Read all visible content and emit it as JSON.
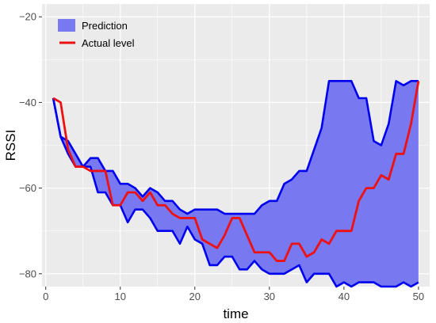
{
  "chart_data": {
    "type": "area",
    "xlabel": "time",
    "ylabel": "RSSI",
    "xlim": [
      -0.5,
      51.5
    ],
    "ylim": [
      -83,
      -17
    ],
    "x_ticks": [
      0,
      10,
      20,
      30,
      40,
      50
    ],
    "x_tick_labels": [
      "0",
      "10",
      "20",
      "30",
      "40",
      "50"
    ],
    "y_ticks": [
      -20,
      -40,
      -60,
      -80
    ],
    "y_tick_labels": [
      "−20",
      "−40",
      "−60",
      "−80"
    ],
    "grid": true,
    "legend_position": "top-left",
    "x": [
      1,
      2,
      3,
      4,
      5,
      6,
      7,
      8,
      9,
      10,
      11,
      12,
      13,
      14,
      15,
      16,
      17,
      18,
      19,
      20,
      21,
      22,
      23,
      24,
      25,
      26,
      27,
      28,
      29,
      30,
      31,
      32,
      33,
      34,
      35,
      36,
      37,
      38,
      39,
      40,
      41,
      42,
      43,
      44,
      45,
      46,
      47,
      48,
      49,
      50
    ],
    "series": [
      {
        "name": "Prediction",
        "kind": "ribbon",
        "color": "#7878f0",
        "border_color": "#0000ee",
        "upper": [
          -39,
          -48,
          -49,
          -52,
          -55,
          -53,
          -53,
          -56,
          -56,
          -59,
          -59,
          -60,
          -62,
          -60,
          -61,
          -63,
          -63,
          -65,
          -66,
          -65,
          -65,
          -65,
          -65,
          -66,
          -66,
          -66,
          -66,
          -66,
          -64,
          -63,
          -63,
          -59,
          -58,
          -56,
          -56,
          -51,
          -46,
          -35,
          -35,
          -35,
          -35,
          -39,
          -39,
          -49,
          -50,
          -45,
          -35,
          -36,
          -35,
          -35
        ],
        "lower": [
          -39,
          -48,
          -52,
          -55,
          -55,
          -55,
          -61,
          -61,
          -64,
          -64,
          -68,
          -65,
          -65,
          -67,
          -70,
          -70,
          -70,
          -73,
          -69,
          -72,
          -73,
          -78,
          -78,
          -76,
          -76,
          -79,
          -79,
          -77,
          -79,
          -80,
          -80,
          -80,
          -79,
          -78,
          -82,
          -80,
          -80,
          -80,
          -83,
          -82,
          -83,
          -82,
          -82,
          -82,
          -83,
          -83,
          -83,
          -82,
          -83,
          -82
        ]
      },
      {
        "name": "Actual level",
        "kind": "line",
        "color": "#ee1111",
        "values": [
          -39,
          -40,
          -51,
          -55,
          -55,
          -56,
          -56,
          -56,
          -64,
          -64,
          -61,
          -61,
          -63,
          -61,
          -64,
          -64,
          -66,
          -67,
          -67,
          -67,
          -72,
          -73,
          -74,
          -71,
          -67,
          -67,
          -71,
          -75,
          -75,
          -75,
          -77,
          -77,
          -73,
          -73,
          -76,
          -75,
          -72,
          -73,
          -70,
          -70,
          -70,
          -63,
          -60,
          -60,
          -57,
          -58,
          -52,
          -52,
          -45,
          -35
        ]
      }
    ]
  }
}
